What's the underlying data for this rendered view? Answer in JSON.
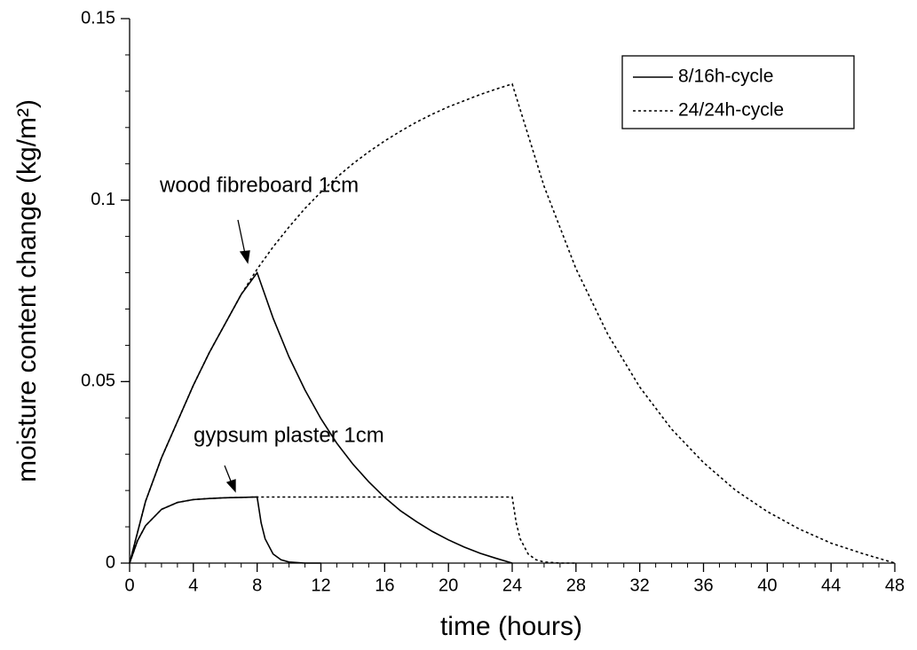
{
  "chart_data": {
    "type": "line",
    "x_label": "time (hours)",
    "y_label": "moisture content change (kg/m²)",
    "xlim": [
      0,
      48
    ],
    "xticks": [
      0,
      4,
      8,
      12,
      16,
      20,
      24,
      28,
      32,
      36,
      40,
      44,
      48
    ],
    "ylim": [
      0,
      0.15
    ],
    "yticks": [
      0,
      0.05,
      0.1,
      0.15
    ],
    "legend": "top-right",
    "annotations": [
      "wood fibreboard 1cm",
      "gypsum plaster 1cm"
    ],
    "series": [
      {
        "name": "8/16h-cycle",
        "color": "#000000",
        "dash": "solid",
        "x": [
          0,
          1,
          2,
          3,
          4,
          5,
          6,
          7,
          8,
          9,
          10,
          11,
          12,
          13,
          14,
          15,
          16,
          17,
          18,
          19,
          20,
          21,
          22,
          23,
          24,
          null,
          0,
          0.5,
          1,
          2,
          3,
          4,
          5,
          6,
          7,
          8,
          8.25,
          8.5,
          9,
          9.5,
          10,
          11,
          12
        ],
        "values": [
          0,
          0.017,
          0.029,
          0.039,
          0.049,
          0.058,
          0.066,
          0.074,
          0.08,
          0.0675,
          0.0568,
          0.0477,
          0.0398,
          0.033,
          0.0273,
          0.0224,
          0.0181,
          0.0144,
          0.0114,
          0.0087,
          0.0064,
          0.0044,
          0.0027,
          0.0013,
          0,
          null,
          0,
          0.0062,
          0.0103,
          0.0148,
          0.0167,
          0.0175,
          0.0178,
          0.018,
          0.0181,
          0.0182,
          0.0111,
          0.0067,
          0.0025,
          0.0009,
          0.0003,
          0,
          0
        ]
      },
      {
        "name": "24/24h-cycle",
        "color": "#000000",
        "dash": "dotted",
        "x": [
          0,
          1,
          2,
          3,
          4,
          5,
          6,
          7,
          8,
          9,
          10,
          11,
          12,
          13,
          14,
          15,
          16,
          17,
          18,
          19,
          20,
          21,
          22,
          23,
          24,
          26,
          28,
          30,
          32,
          34,
          36,
          38,
          40,
          42,
          44,
          46,
          48,
          null,
          0,
          0.5,
          1,
          2,
          3,
          4,
          5,
          6,
          7,
          8,
          24,
          24.25,
          24.5,
          25,
          25.5,
          26,
          27,
          28
        ],
        "values": [
          0,
          0.017,
          0.029,
          0.039,
          0.049,
          0.058,
          0.066,
          0.074,
          0.081,
          0.0871,
          0.0926,
          0.0977,
          0.1022,
          0.1063,
          0.11,
          0.1133,
          0.1163,
          0.119,
          0.1215,
          0.1237,
          0.1257,
          0.1274,
          0.1291,
          0.1306,
          0.132,
          0.1038,
          0.0811,
          0.063,
          0.0485,
          0.0369,
          0.0277,
          0.0201,
          0.0142,
          0.0094,
          0.0055,
          0.0026,
          0,
          null,
          0,
          0.0062,
          0.0103,
          0.0148,
          0.0167,
          0.0175,
          0.0178,
          0.018,
          0.0181,
          0.0182,
          0.0182,
          0.0111,
          0.0067,
          0.0025,
          0.0009,
          0.0003,
          0,
          0
        ]
      }
    ]
  }
}
